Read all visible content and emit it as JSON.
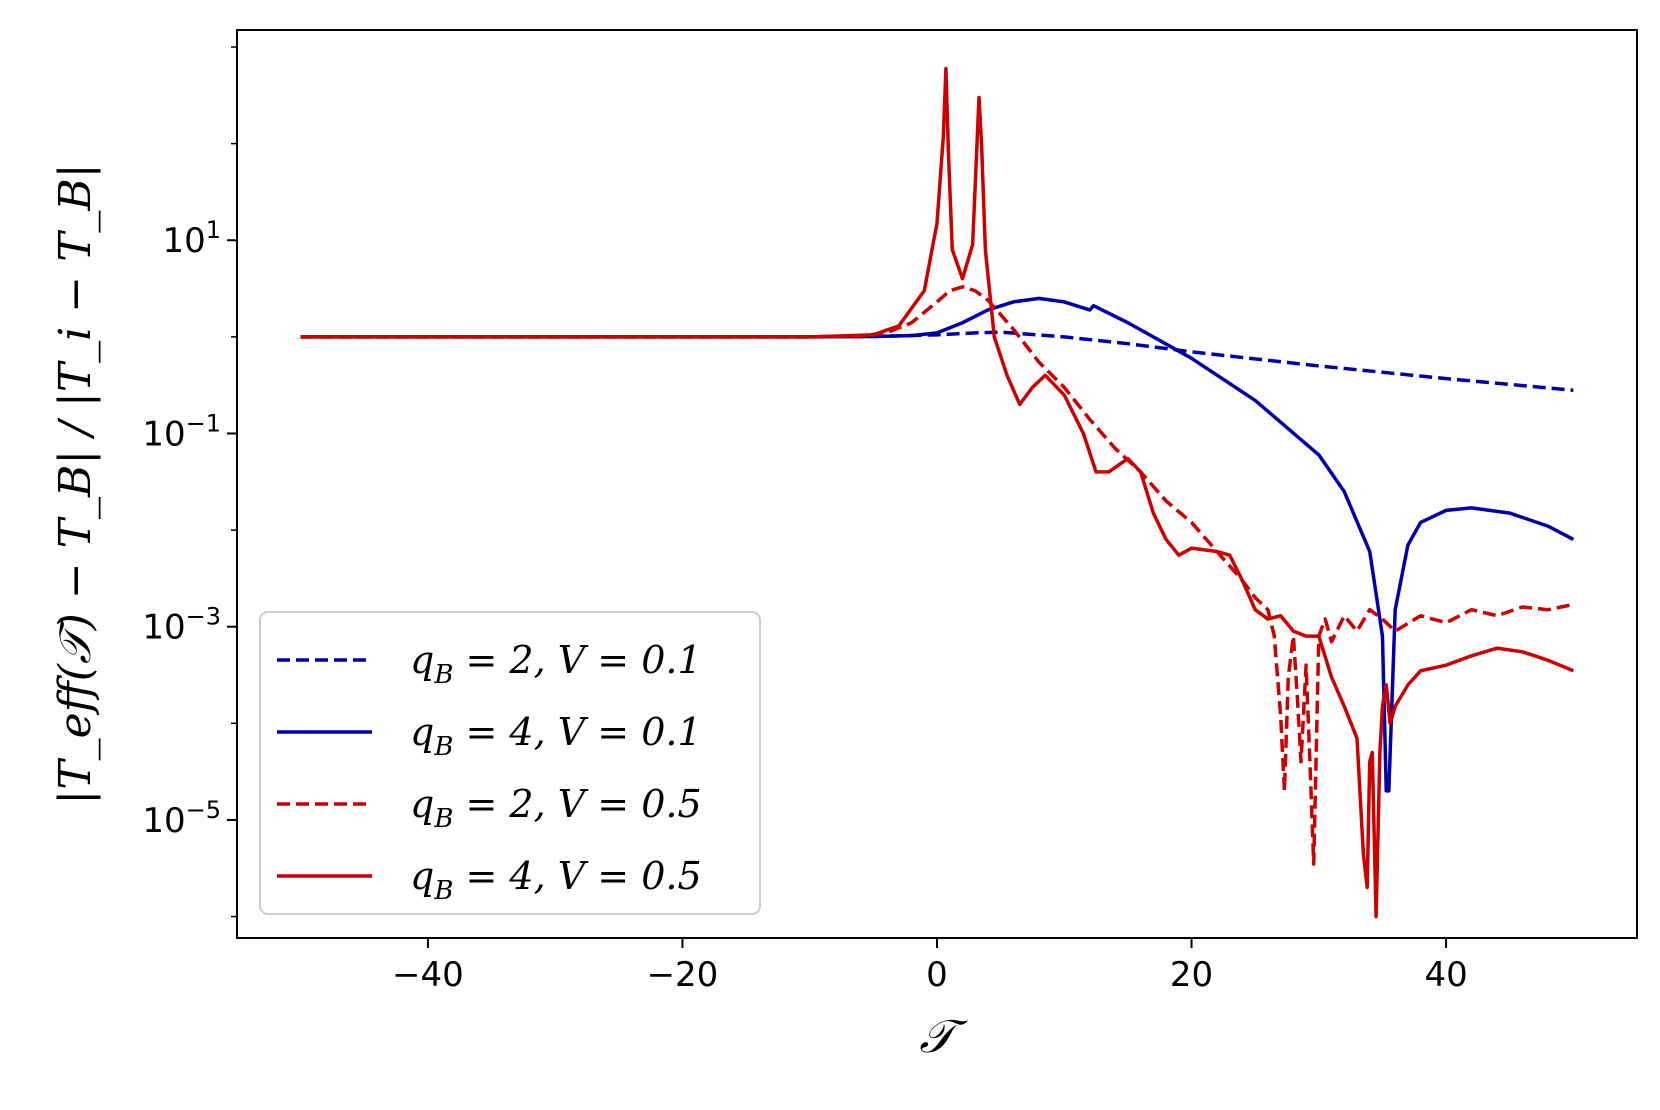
{
  "chart_data": {
    "type": "line",
    "xlabel": "𝒯",
    "ylabel": "|T_eff(𝒯) − T_B| / |T_i − T_B|",
    "xlim": [
      -55,
      55
    ],
    "ylim": [
      6e-07,
      1500.0
    ],
    "yscale": "log",
    "x_ticks": [
      -40,
      -20,
      0,
      20,
      40
    ],
    "x_tick_labels": [
      "−40",
      "−20",
      "0",
      "20",
      "40"
    ],
    "y_ticks": [
      1e-05,
      0.001,
      0.1,
      10.0
    ],
    "y_tick_labels": [
      {
        "base": "10",
        "exp": "−5"
      },
      {
        "base": "10",
        "exp": "−3"
      },
      {
        "base": "10",
        "exp": "−1"
      },
      {
        "base": "10",
        "exp": "1"
      }
    ],
    "grid": false,
    "legend_position": "lower-left",
    "series": [
      {
        "name": "q_B = 2,  V = 0.1",
        "label_parts": {
          "q": "q",
          "sub": "B",
          "rest": " = 2,  V = 0.1"
        },
        "color": "#0000aa",
        "dash": "dashed",
        "x": [
          -50,
          -20,
          -10,
          -5,
          0,
          3,
          5,
          10,
          15,
          20,
          30,
          40,
          50
        ],
        "y": [
          1.0,
          1.0,
          1.0,
          1.01,
          1.05,
          1.1,
          1.12,
          1.0,
          0.85,
          0.7,
          0.5,
          0.37,
          0.28
        ]
      },
      {
        "name": "q_B = 4,  V = 0.1",
        "label_parts": {
          "q": "q",
          "sub": "B",
          "rest": " = 4,  V = 0.1"
        },
        "color": "#0000aa",
        "dash": "solid",
        "x": [
          -50,
          -20,
          -10,
          -5,
          -2,
          0,
          2,
          4,
          6,
          8,
          10,
          12,
          12.3,
          15,
          20,
          25,
          30,
          32,
          34,
          35,
          35.3,
          35.5,
          36,
          37,
          38,
          40,
          42,
          45,
          48,
          50
        ],
        "y": [
          1.0,
          1.0,
          1.0,
          1.01,
          1.03,
          1.1,
          1.4,
          1.9,
          2.3,
          2.5,
          2.3,
          1.9,
          2.1,
          1.4,
          0.6,
          0.22,
          0.06,
          0.025,
          0.006,
          0.0008,
          2e-05,
          2e-05,
          0.0015,
          0.007,
          0.012,
          0.016,
          0.017,
          0.015,
          0.011,
          0.008
        ]
      },
      {
        "name": "q_B = 2,  V = 0.5",
        "label_parts": {
          "q": "q",
          "sub": "B",
          "rest": " = 2,  V = 0.5"
        },
        "color": "#cc0000",
        "dash": "dashed",
        "x": [
          -50,
          -20,
          -10,
          -6,
          -4,
          -2,
          0,
          1,
          2,
          3,
          4,
          6,
          8,
          10,
          12,
          14,
          16,
          18,
          20,
          22,
          24,
          25,
          26,
          26.5,
          27,
          27.3,
          27.6,
          28,
          28.3,
          28.6,
          29,
          29.3,
          29.6,
          30,
          30.5,
          31,
          32,
          33,
          34,
          35,
          36,
          38,
          40,
          42,
          44,
          46,
          48,
          50
        ],
        "y": [
          1.0,
          1.0,
          1.0,
          1.02,
          1.1,
          1.4,
          2.3,
          3.0,
          3.3,
          3.0,
          2.4,
          1.2,
          0.55,
          0.3,
          0.14,
          0.07,
          0.04,
          0.02,
          0.012,
          0.006,
          0.003,
          0.002,
          0.0015,
          0.0008,
          0.00012,
          2e-05,
          0.0003,
          0.0008,
          0.0002,
          4e-05,
          0.0004,
          4e-05,
          3.5e-06,
          0.0008,
          0.0012,
          0.0007,
          0.0013,
          0.0009,
          0.0015,
          0.0012,
          0.0009,
          0.0013,
          0.0011,
          0.0015,
          0.0013,
          0.0016,
          0.0015,
          0.0017
        ]
      },
      {
        "name": "q_B = 4,  V = 0.5",
        "label_parts": {
          "q": "q",
          "sub": "B",
          "rest": " = 4,  V = 0.5"
        },
        "color": "#cc0000",
        "dash": "solid",
        "x": [
          -50,
          -20,
          -10,
          -5,
          -3,
          -1,
          0,
          0.5,
          0.7,
          0.9,
          1.2,
          2.0,
          2.8,
          3.3,
          3.5,
          3.8,
          4.5,
          5.5,
          6.5,
          7.5,
          8.5,
          10,
          11.5,
          12.5,
          13.5,
          15,
          16,
          17,
          18,
          19,
          20,
          22,
          23,
          24,
          25,
          26,
          27,
          28,
          29,
          30,
          31,
          32,
          33,
          33.5,
          33.8,
          34.0,
          34.2,
          34.5,
          34.8,
          35.0,
          35.3,
          35.6,
          36,
          37,
          38,
          40,
          42,
          44,
          46,
          48,
          50
        ],
        "y": [
          1.0,
          1.0,
          1.0,
          1.05,
          1.3,
          3.0,
          15.0,
          120.0,
          600.0,
          80.0,
          8.0,
          4.0,
          9.0,
          300.0,
          100.0,
          8.0,
          1.0,
          0.4,
          0.2,
          0.3,
          0.4,
          0.25,
          0.1,
          0.04,
          0.04,
          0.055,
          0.04,
          0.015,
          0.008,
          0.0055,
          0.0065,
          0.006,
          0.0055,
          0.003,
          0.0015,
          0.0012,
          0.0013,
          0.0009,
          0.0008,
          0.0008,
          0.0003,
          0.00015,
          7e-05,
          4.5e-06,
          2e-06,
          4e-05,
          5e-05,
          1e-06,
          5e-05,
          0.00015,
          0.00025,
          0.0001,
          0.00015,
          0.00025,
          0.00035,
          0.0004,
          0.0005,
          0.0006,
          0.00055,
          0.00045,
          0.00035
        ]
      }
    ]
  }
}
